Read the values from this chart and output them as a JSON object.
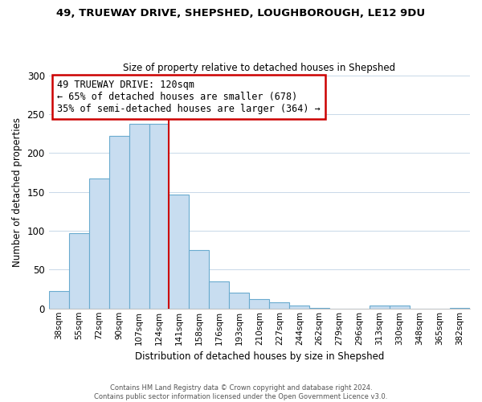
{
  "title1": "49, TRUEWAY DRIVE, SHEPSHED, LOUGHBOROUGH, LE12 9DU",
  "title2": "Size of property relative to detached houses in Shepshed",
  "xlabel": "Distribution of detached houses by size in Shepshed",
  "ylabel": "Number of detached properties",
  "bar_labels": [
    "38sqm",
    "55sqm",
    "72sqm",
    "90sqm",
    "107sqm",
    "124sqm",
    "141sqm",
    "158sqm",
    "176sqm",
    "193sqm",
    "210sqm",
    "227sqm",
    "244sqm",
    "262sqm",
    "279sqm",
    "296sqm",
    "313sqm",
    "330sqm",
    "348sqm",
    "365sqm",
    "382sqm"
  ],
  "bar_values": [
    22,
    97,
    167,
    222,
    237,
    237,
    147,
    75,
    35,
    20,
    12,
    8,
    4,
    1,
    0,
    0,
    4,
    4,
    0,
    0,
    1
  ],
  "bar_color": "#c8ddf0",
  "bar_edge_color": "#6aabcf",
  "highlight_line_color": "#cc0000",
  "annotation_title": "49 TRUEWAY DRIVE: 120sqm",
  "annotation_line1": "← 65% of detached houses are smaller (678)",
  "annotation_line2": "35% of semi-detached houses are larger (364) →",
  "annotation_box_edge": "#cc0000",
  "ylim": [
    0,
    300
  ],
  "yticks": [
    0,
    50,
    100,
    150,
    200,
    250,
    300
  ],
  "footnote1": "Contains HM Land Registry data © Crown copyright and database right 2024.",
  "footnote2": "Contains public sector information licensed under the Open Government Licence v3.0."
}
